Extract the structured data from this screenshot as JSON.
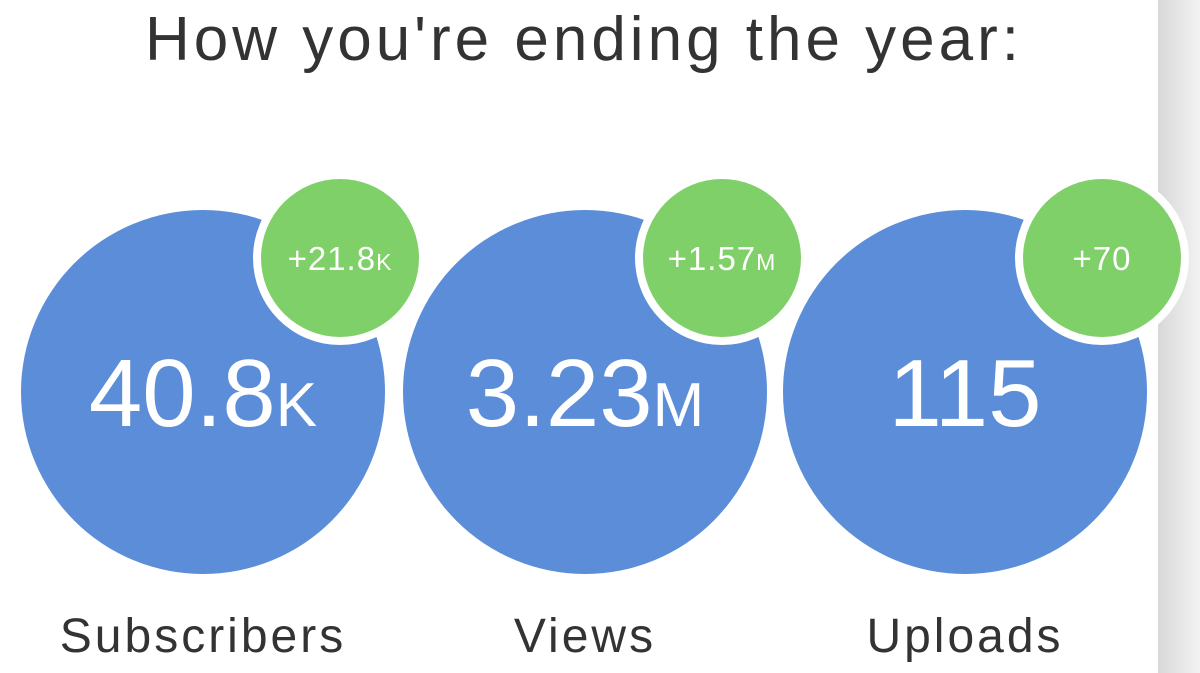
{
  "title": "How you're ending the year:",
  "stats": [
    {
      "value": "40.8",
      "value_suffix": "K",
      "change": "+21.8",
      "change_suffix": "K",
      "label": "Subscribers"
    },
    {
      "value": "3.23",
      "value_suffix": "M",
      "change": "+1.57",
      "change_suffix": "M",
      "label": "Views"
    },
    {
      "value": "115",
      "change": "+70",
      "label": "Uploads"
    }
  ]
}
